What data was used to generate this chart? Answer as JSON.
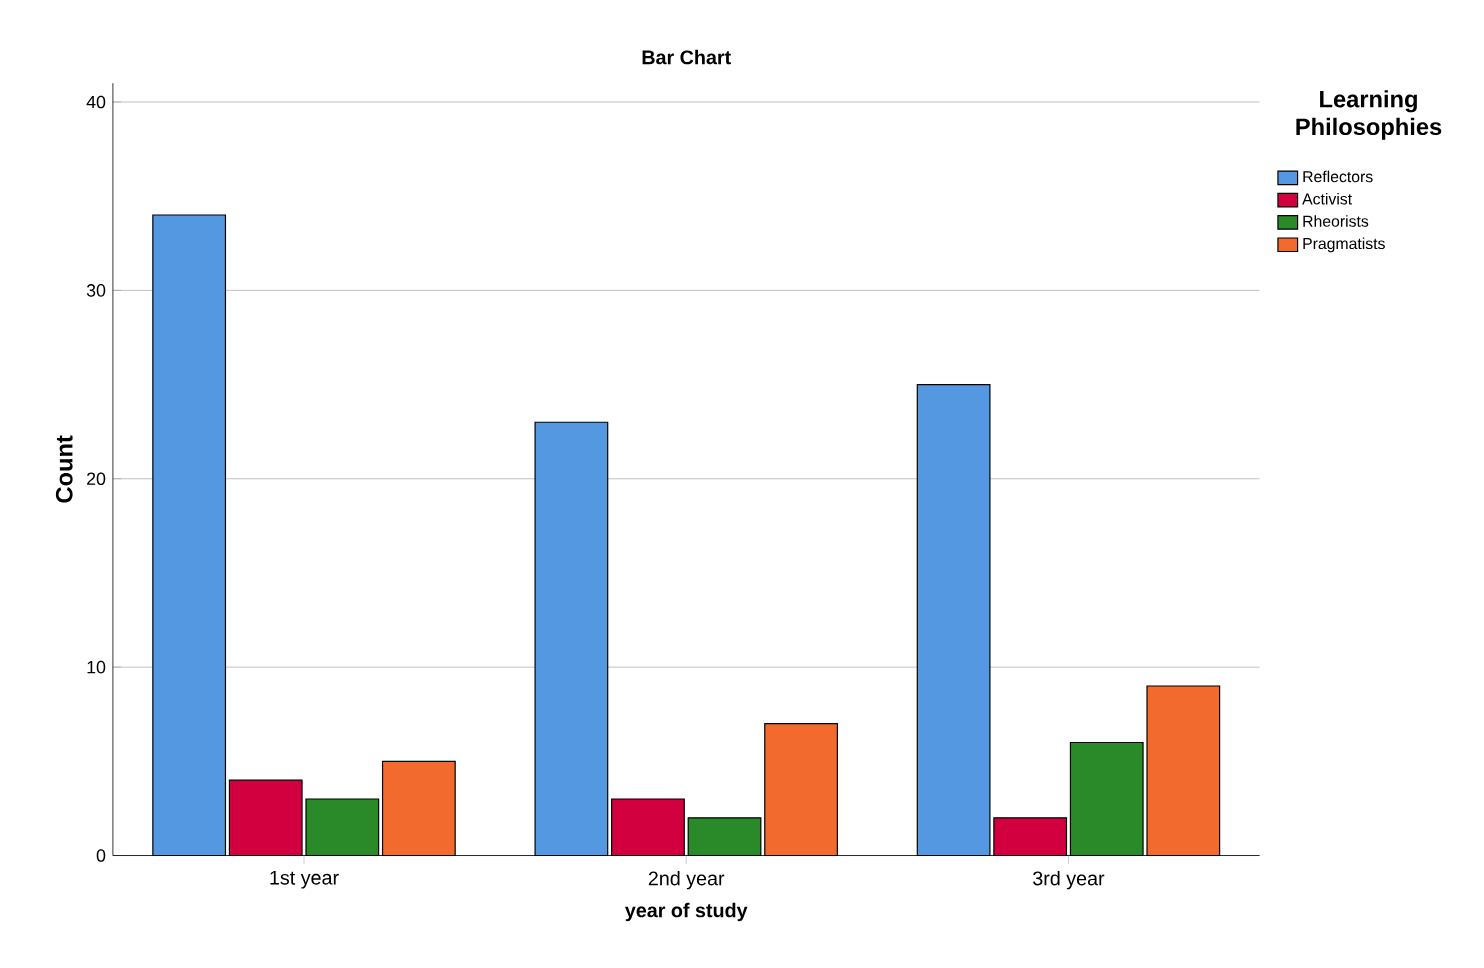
{
  "chart_data": {
    "type": "bar",
    "title": "Bar Chart",
    "xlabel": "year of study",
    "ylabel": "Count",
    "legend_title": "Learning Philosophies",
    "categories": [
      "1st year",
      "2nd year",
      "3rd year"
    ],
    "series": [
      {
        "name": "Reflectors",
        "color": "#5598e2",
        "values": [
          34,
          23,
          25
        ]
      },
      {
        "name": "Activist",
        "color": "#d3003f",
        "values": [
          4,
          3,
          2
        ]
      },
      {
        "name": "Rheorists",
        "color": "#2a8a2a",
        "values": [
          3,
          2,
          6
        ]
      },
      {
        "name": "Pragmatists",
        "color": "#f26a2e",
        "values": [
          5,
          7,
          9
        ]
      }
    ],
    "ylim": [
      0,
      41
    ],
    "yticks": [
      0,
      10,
      20,
      30,
      40
    ],
    "grid": "y",
    "legend": "top right"
  }
}
